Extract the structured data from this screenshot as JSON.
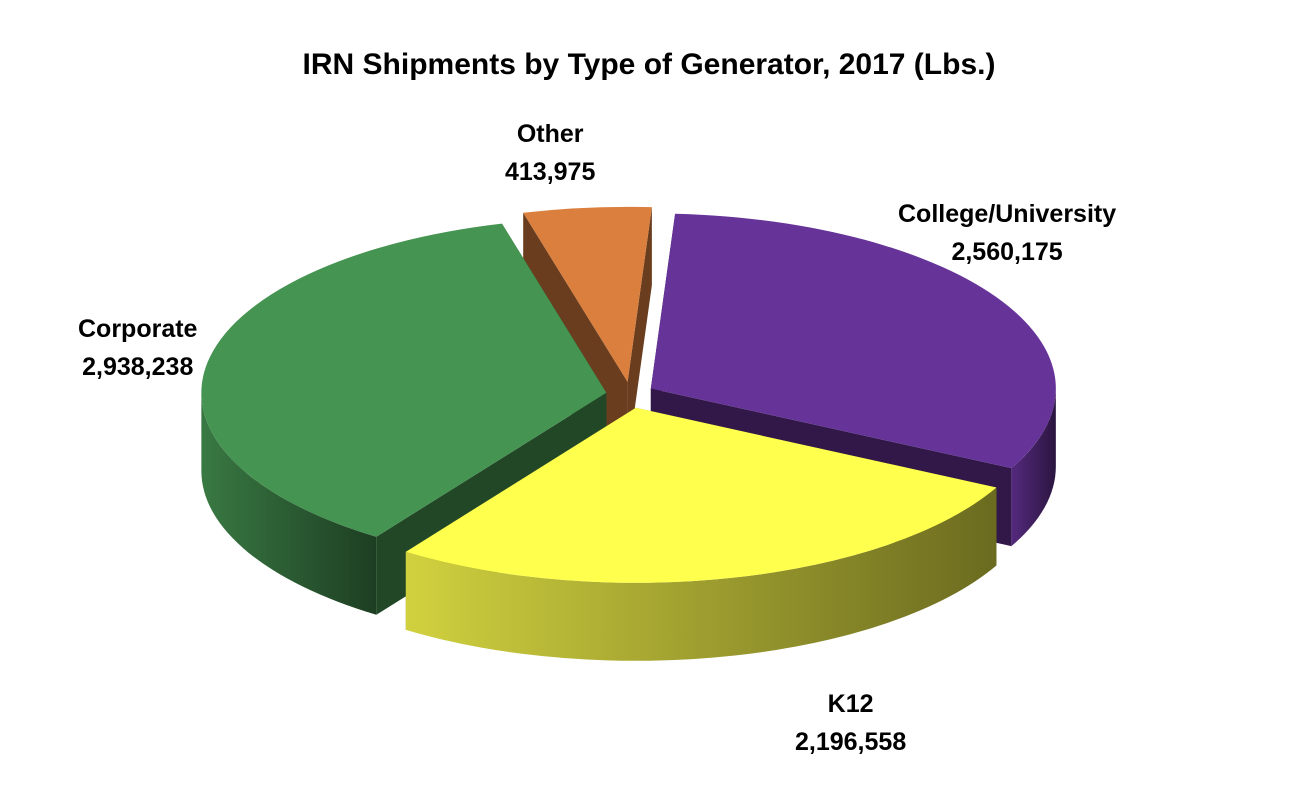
{
  "chart_data": {
    "type": "pie",
    "title": "IRN Shipments by Type of Generator, 2017 (Lbs.)",
    "slices": [
      {
        "label": "College/University",
        "value_label": "2,560,175",
        "value": 2560175,
        "color": "#663399"
      },
      {
        "label": "K12",
        "value_label": "2,196,558",
        "value": 2196558,
        "color": "#FFFF4D"
      },
      {
        "label": "Corporate",
        "value_label": "2,938,238",
        "value": 2938238,
        "color": "#459452"
      },
      {
        "label": "Other",
        "value_label": "413,975",
        "value": 413975,
        "color": "#DB7F3E"
      }
    ],
    "style": "3d-exploded"
  }
}
